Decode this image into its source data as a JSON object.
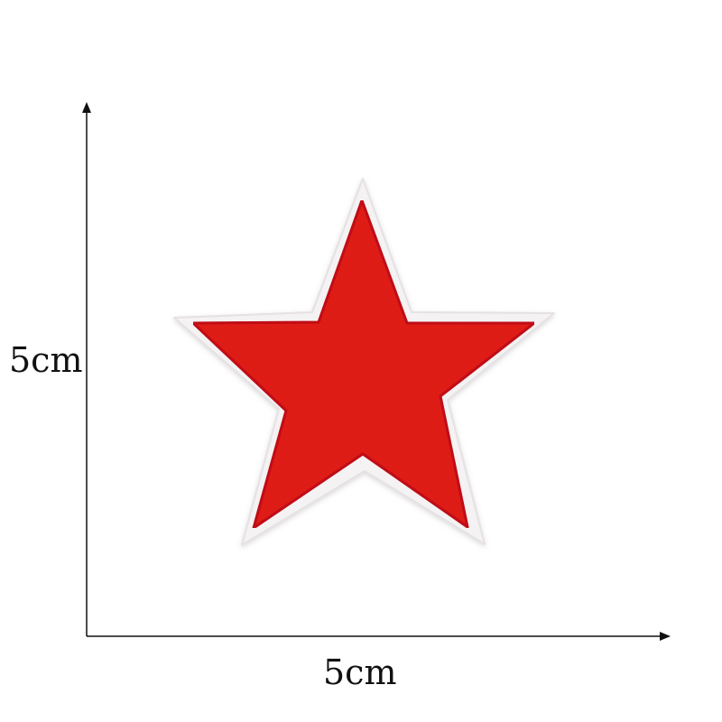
{
  "dimensions": {
    "height_label": "5cm",
    "width_label": "5cm"
  },
  "product": {
    "shape": "five-pointed star",
    "fill_color": "#e8201e",
    "border_color": "#f4f2f3",
    "edge_color": "#c8141c"
  },
  "colors": {
    "background": "#ffffff",
    "axis": "#111111",
    "label": "#111111"
  }
}
